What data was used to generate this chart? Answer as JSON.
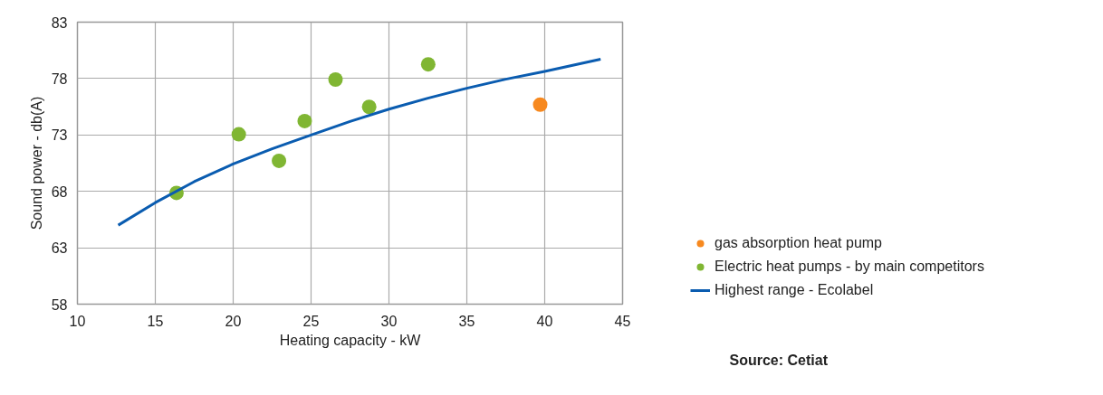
{
  "chart_data": {
    "type": "scatter",
    "xlabel": "Heating capacity - kW",
    "ylabel": "Sound power - db(A)",
    "xlim": [
      10,
      45
    ],
    "xticks": [
      10,
      15,
      20,
      25,
      30,
      35,
      40,
      45
    ],
    "ylim": [
      58,
      83
    ],
    "yticks": [
      58,
      63,
      68,
      73,
      78,
      83
    ],
    "grid": true,
    "legend": "right",
    "marker": "circle",
    "series": [
      {
        "name": "gas absorption heat pump",
        "color": "#f7891f",
        "x": [
          39.71
        ],
        "values": [
          75.69
        ]
      },
      {
        "name": "Electric heat pumps - by main competitors",
        "color": "#80b633",
        "x": [
          16.36,
          20.36,
          22.94,
          24.59,
          26.57,
          28.73,
          32.52
        ],
        "values": [
          67.86,
          73.06,
          70.71,
          74.23,
          77.91,
          75.49,
          79.26
        ]
      },
      {
        "name": "Highest range - Ecolabel",
        "type": "line",
        "color": "#0a5cb0",
        "line_style": "solid",
        "marker": "none",
        "x": [
          12.62,
          15,
          17.5,
          20,
          22.5,
          25,
          27.5,
          30,
          32.5,
          35,
          37.5,
          40,
          43.59
        ],
        "values": [
          65.0,
          67.0,
          68.86,
          70.43,
          71.77,
          73.0,
          74.2,
          75.29,
          76.26,
          77.14,
          77.94,
          78.63,
          79.71
        ]
      }
    ],
    "annotations": [
      "Source: Cetiat"
    ]
  }
}
